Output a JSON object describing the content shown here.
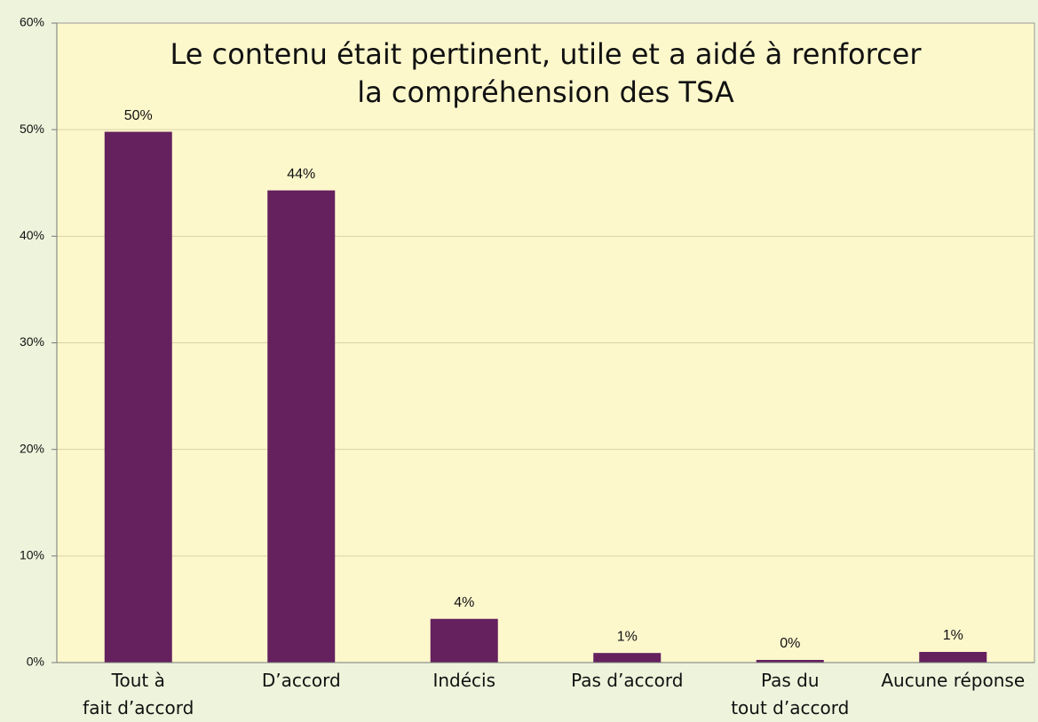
{
  "chart_data": {
    "type": "bar",
    "title": "Le contenu était pertinent, utile et a aidé à renforcer\nla compréhension des TSA",
    "categories": [
      "Tout à\nfait d’accord",
      "D’accord",
      "Indécis",
      "Pas d’accord",
      "Pas du\ntout d’accord",
      "Aucune réponse"
    ],
    "values": [
      49.8,
      44.3,
      4.1,
      0.9,
      0.25,
      1.0
    ],
    "value_labels": [
      "50%",
      "44%",
      "4%",
      "1%",
      "0%",
      "1%"
    ],
    "color": "#65205e",
    "ylim": [
      0,
      60
    ],
    "yticks": [
      {
        "value": 0,
        "label": "0%"
      },
      {
        "value": 10,
        "label": "10%"
      },
      {
        "value": 20,
        "label": "20%"
      },
      {
        "value": 30,
        "label": "30%"
      },
      {
        "value": 40,
        "label": "40%"
      },
      {
        "value": 50,
        "label": "50%"
      },
      {
        "value": 60,
        "label": "60%"
      }
    ],
    "grid": true
  }
}
